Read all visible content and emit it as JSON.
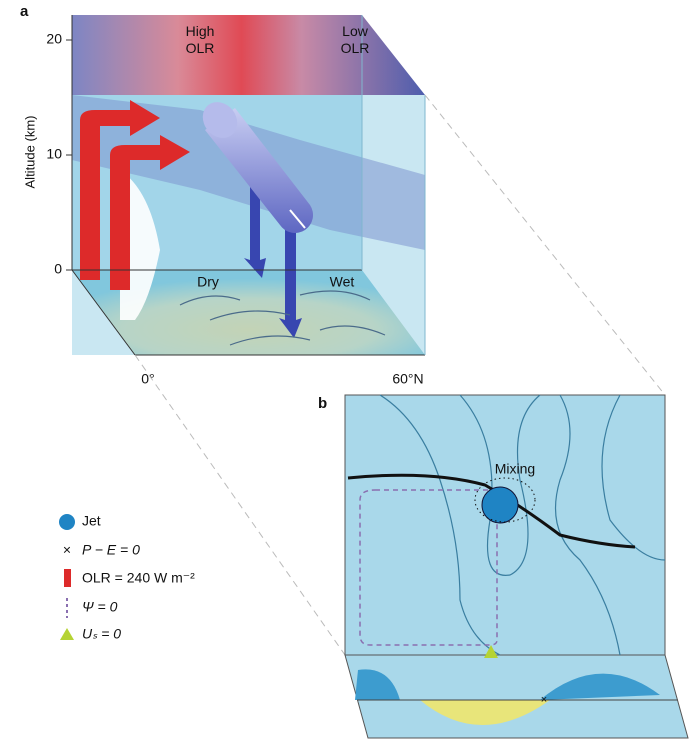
{
  "panel_a": {
    "label": "a",
    "y_axis_title": "Altitude (km)",
    "y_labels": [
      "20",
      "10",
      "0"
    ],
    "top_labels": [
      "High\nOLR",
      "Low\nOLR"
    ],
    "floor_labels": [
      "Dry",
      "Wet"
    ],
    "x_labels": [
      "0°",
      "60°N"
    ]
  },
  "panel_b": {
    "label": "b",
    "annotation": "Mixing"
  },
  "legend": [
    "Jet",
    "P − E = 0",
    "OLR = 240 W m⁻²",
    "Ψ = 0",
    "Uₛ = 0"
  ]
}
